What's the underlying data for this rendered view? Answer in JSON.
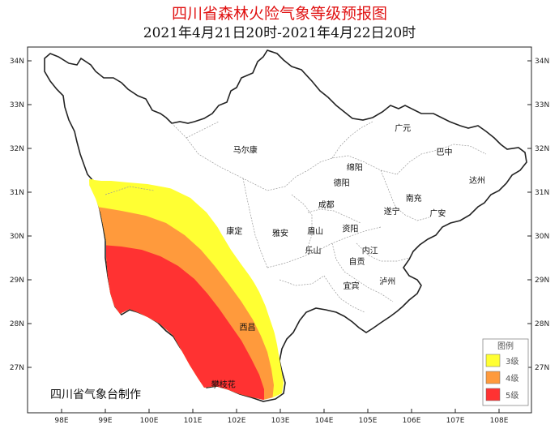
{
  "title": "四川省森林火险气象等级预报图",
  "subtitle": "2021年4月21日20时-2021年4月22日20时",
  "issuer": "四川省气象台制作",
  "axes": {
    "lon_ticks": [
      "98E",
      "99E",
      "100E",
      "101E",
      "102E",
      "103E",
      "104E",
      "105E",
      "106E",
      "107E",
      "108E"
    ],
    "lat_ticks": [
      "34N",
      "33N",
      "32N",
      "31N",
      "30N",
      "29N",
      "28N",
      "27N"
    ]
  },
  "cities": [
    {
      "name": "马尔康",
      "lon": 102.2,
      "lat": 31.9
    },
    {
      "name": "广元",
      "lon": 105.8,
      "lat": 32.4
    },
    {
      "name": "巴中",
      "lon": 106.75,
      "lat": 31.85
    },
    {
      "name": "达州",
      "lon": 107.5,
      "lat": 31.2
    },
    {
      "name": "绵阳",
      "lon": 104.7,
      "lat": 31.5
    },
    {
      "name": "德阳",
      "lon": 104.4,
      "lat": 31.15
    },
    {
      "name": "南充",
      "lon": 106.05,
      "lat": 30.8
    },
    {
      "name": "成都",
      "lon": 104.05,
      "lat": 30.65
    },
    {
      "name": "遂宁",
      "lon": 105.55,
      "lat": 30.5
    },
    {
      "name": "广安",
      "lon": 106.6,
      "lat": 30.45
    },
    {
      "name": "康定",
      "lon": 101.95,
      "lat": 30.05
    },
    {
      "name": "雅安",
      "lon": 103.0,
      "lat": 30.0
    },
    {
      "name": "眉山",
      "lon": 103.8,
      "lat": 30.05
    },
    {
      "name": "资阳",
      "lon": 104.6,
      "lat": 30.1
    },
    {
      "name": "乐山",
      "lon": 103.75,
      "lat": 29.6
    },
    {
      "name": "自贡",
      "lon": 104.75,
      "lat": 29.35
    },
    {
      "name": "内江",
      "lon": 105.05,
      "lat": 29.6
    },
    {
      "name": "泸州",
      "lon": 105.45,
      "lat": 28.9
    },
    {
      "name": "宜宾",
      "lon": 104.62,
      "lat": 28.8
    },
    {
      "name": "西昌",
      "lon": 102.25,
      "lat": 27.85
    },
    {
      "name": "攀枝花",
      "lon": 101.7,
      "lat": 26.55
    }
  ],
  "legend": {
    "title": "图例",
    "items": [
      {
        "label": "3级",
        "color": "#ffff33"
      },
      {
        "label": "4级",
        "color": "#ff9a3c"
      },
      {
        "label": "5级",
        "color": "#ff3232"
      }
    ]
  },
  "colors": {
    "level3": "#ffff33",
    "level4": "#ff9a3c",
    "level5": "#ff3232",
    "title": "#e01010"
  }
}
